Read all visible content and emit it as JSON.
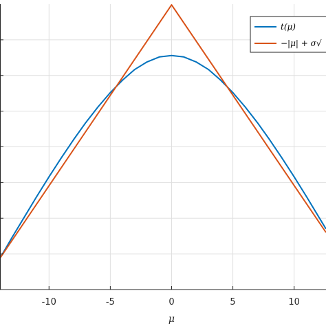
{
  "chart_data": {
    "type": "line",
    "xlabel": "μ",
    "ylabel": "",
    "xlim": [
      -14,
      12.6
    ],
    "ylim": [
      0,
      8
    ],
    "xticks": [
      -10,
      -5,
      0,
      5,
      10
    ],
    "xtick_labels": [
      "-10",
      "-5",
      "0",
      "5",
      "10"
    ],
    "yticks": [
      1,
      2,
      3,
      4,
      5,
      6,
      7
    ],
    "grid": true,
    "legend_position": "top-right",
    "series": [
      {
        "name": "t(μ)",
        "color": "#0072BD",
        "points": [
          [
            -14,
            0.88
          ],
          [
            -13,
            1.47
          ],
          [
            -12,
            2.04
          ],
          [
            -11,
            2.61
          ],
          [
            -10,
            3.16
          ],
          [
            -9,
            3.69
          ],
          [
            -8,
            4.2
          ],
          [
            -7,
            4.68
          ],
          [
            -6,
            5.12
          ],
          [
            -5,
            5.52
          ],
          [
            -4,
            5.87
          ],
          [
            -3,
            6.17
          ],
          [
            -2,
            6.38
          ],
          [
            -1,
            6.52
          ],
          [
            0,
            6.56
          ],
          [
            1,
            6.52
          ],
          [
            2,
            6.38
          ],
          [
            3,
            6.17
          ],
          [
            4,
            5.87
          ],
          [
            5,
            5.52
          ],
          [
            6,
            5.12
          ],
          [
            7,
            4.68
          ],
          [
            8,
            4.2
          ],
          [
            9,
            3.69
          ],
          [
            10,
            3.16
          ],
          [
            11,
            2.61
          ],
          [
            12,
            2.04
          ],
          [
            12.6,
            1.7
          ]
        ]
      },
      {
        "name": "−|μ| + σ√",
        "color": "#D95319",
        "points": [
          [
            -14,
            0.88
          ],
          [
            0,
            7.98
          ],
          [
            12.6,
            1.6
          ]
        ]
      }
    ]
  }
}
